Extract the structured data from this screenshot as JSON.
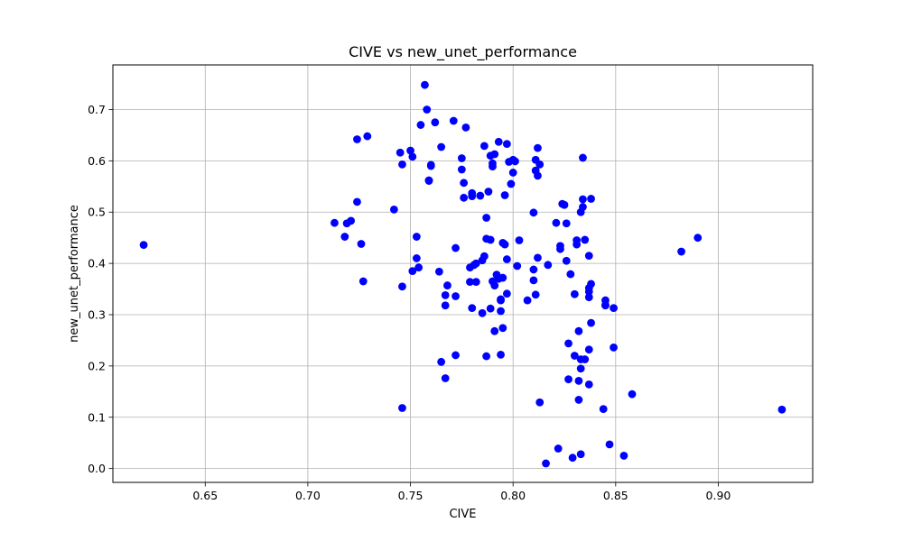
{
  "chart_data": {
    "type": "scatter",
    "title": "CIVE vs new_unet_performance",
    "xlabel": "CIVE",
    "ylabel": "new_unet_performance",
    "xlim": [
      0.605,
      0.946
    ],
    "ylim": [
      -0.027,
      0.787
    ],
    "x_ticks": [
      0.65,
      0.7,
      0.75,
      0.8,
      0.85,
      0.9
    ],
    "x_tick_labels": [
      "0.65",
      "0.70",
      "0.75",
      "0.80",
      "0.85",
      "0.90"
    ],
    "y_ticks": [
      0.0,
      0.1,
      0.2,
      0.3,
      0.4,
      0.5,
      0.6,
      0.7
    ],
    "y_tick_labels": [
      "0.0",
      "0.1",
      "0.2",
      "0.3",
      "0.4",
      "0.5",
      "0.6",
      "0.7"
    ],
    "grid": true,
    "marker_color": "#0000ff",
    "series": [
      {
        "x": [
          0.62,
          0.713,
          0.718,
          0.719,
          0.721,
          0.724,
          0.724,
          0.726,
          0.727,
          0.729,
          0.742,
          0.745,
          0.746,
          0.746,
          0.746,
          0.75,
          0.751,
          0.751,
          0.753,
          0.753,
          0.754,
          0.755,
          0.757,
          0.758,
          0.759,
          0.759,
          0.76,
          0.76,
          0.762,
          0.764,
          0.765,
          0.765,
          0.767,
          0.767,
          0.767,
          0.768,
          0.771,
          0.772,
          0.772,
          0.772,
          0.775,
          0.775,
          0.776,
          0.776,
          0.777,
          0.779,
          0.779,
          0.78,
          0.78,
          0.78,
          0.781,
          0.782,
          0.782,
          0.784,
          0.785,
          0.785,
          0.786,
          0.786,
          0.787,
          0.787,
          0.787,
          0.788,
          0.789,
          0.789,
          0.789,
          0.79,
          0.79,
          0.79,
          0.791,
          0.791,
          0.791,
          0.792,
          0.793,
          0.793,
          0.794,
          0.794,
          0.794,
          0.794,
          0.795,
          0.795,
          0.795,
          0.796,
          0.796,
          0.797,
          0.797,
          0.797,
          0.798,
          0.799,
          0.8,
          0.8,
          0.801,
          0.802,
          0.803,
          0.807,
          0.81,
          0.81,
          0.81,
          0.811,
          0.811,
          0.811,
          0.812,
          0.812,
          0.812,
          0.813,
          0.813,
          0.816,
          0.817,
          0.821,
          0.822,
          0.823,
          0.823,
          0.824,
          0.825,
          0.826,
          0.826,
          0.827,
          0.827,
          0.828,
          0.829,
          0.83,
          0.83,
          0.831,
          0.831,
          0.832,
          0.832,
          0.832,
          0.833,
          0.833,
          0.833,
          0.833,
          0.834,
          0.834,
          0.834,
          0.835,
          0.835,
          0.837,
          0.837,
          0.837,
          0.837,
          0.837,
          0.837,
          0.838,
          0.838,
          0.838,
          0.844,
          0.845,
          0.845,
          0.845,
          0.847,
          0.849,
          0.849,
          0.854,
          0.858,
          0.882,
          0.89,
          0.931
        ],
        "y": [
          0.436,
          0.479,
          0.452,
          0.478,
          0.483,
          0.642,
          0.52,
          0.438,
          0.365,
          0.648,
          0.505,
          0.616,
          0.593,
          0.355,
          0.118,
          0.62,
          0.385,
          0.608,
          0.41,
          0.452,
          0.392,
          0.67,
          0.748,
          0.7,
          0.562,
          0.561,
          0.59,
          0.592,
          0.675,
          0.384,
          0.627,
          0.208,
          0.176,
          0.318,
          0.338,
          0.357,
          0.678,
          0.43,
          0.336,
          0.221,
          0.605,
          0.583,
          0.557,
          0.528,
          0.665,
          0.364,
          0.392,
          0.531,
          0.537,
          0.313,
          0.397,
          0.364,
          0.4,
          0.532,
          0.406,
          0.303,
          0.629,
          0.414,
          0.489,
          0.448,
          0.219,
          0.54,
          0.446,
          0.312,
          0.61,
          0.365,
          0.589,
          0.595,
          0.357,
          0.613,
          0.268,
          0.378,
          0.637,
          0.37,
          0.33,
          0.307,
          0.328,
          0.222,
          0.44,
          0.372,
          0.274,
          0.533,
          0.437,
          0.633,
          0.341,
          0.408,
          0.598,
          0.555,
          0.577,
          0.602,
          0.599,
          0.395,
          0.445,
          0.328,
          0.388,
          0.367,
          0.499,
          0.581,
          0.602,
          0.339,
          0.625,
          0.411,
          0.571,
          0.593,
          0.129,
          0.01,
          0.397,
          0.479,
          0.039,
          0.434,
          0.428,
          0.516,
          0.514,
          0.478,
          0.405,
          0.244,
          0.174,
          0.379,
          0.021,
          0.22,
          0.34,
          0.437,
          0.445,
          0.171,
          0.268,
          0.134,
          0.5,
          0.213,
          0.195,
          0.028,
          0.51,
          0.525,
          0.606,
          0.213,
          0.446,
          0.352,
          0.334,
          0.232,
          0.164,
          0.415,
          0.345,
          0.526,
          0.36,
          0.284,
          0.116,
          0.318,
          0.328,
          0.319,
          0.047,
          0.236,
          0.313,
          0.025,
          0.145,
          0.423,
          0.45,
          0.115
        ]
      }
    ]
  }
}
